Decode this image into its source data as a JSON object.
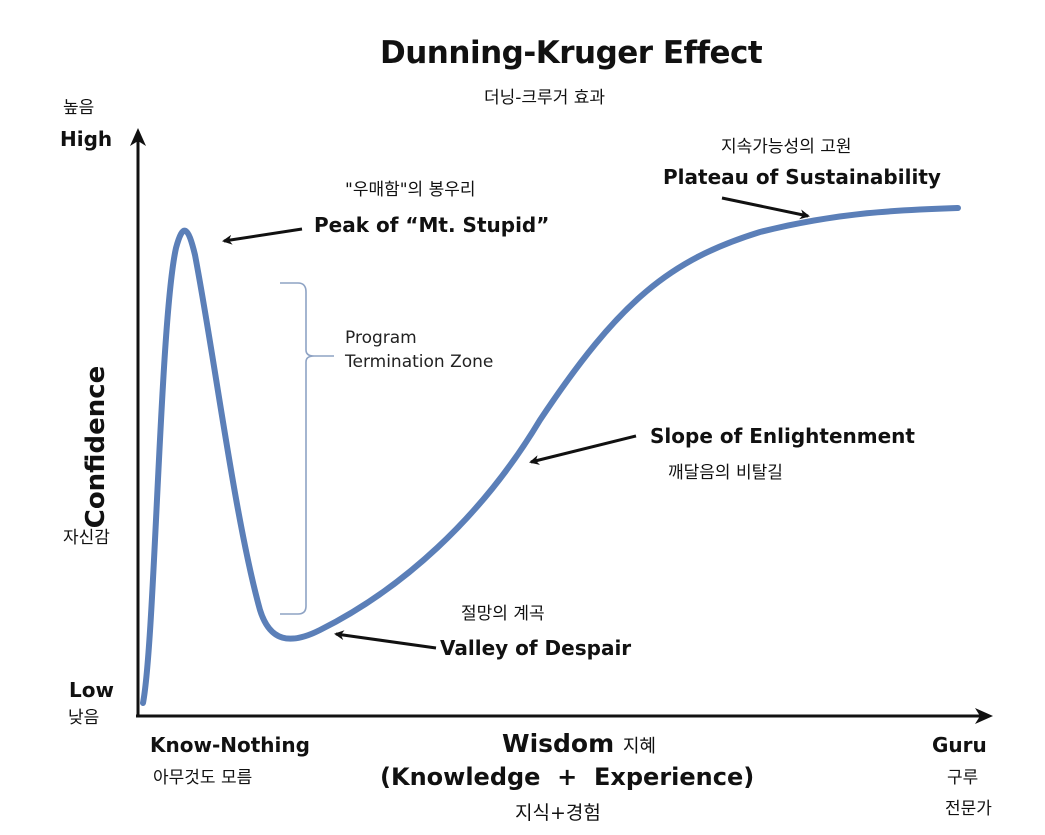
{
  "title": "Dunning-Kruger Effect",
  "title_ko": "더닝-크루거 효과",
  "y_axis": {
    "high_ko": "높음",
    "high": "High",
    "label": "Confidence",
    "label_ko": "자신감",
    "low": "Low",
    "low_ko": "낮음"
  },
  "x_axis": {
    "left": "Know-Nothing",
    "left_ko": "아무것도 모름",
    "label": "Wisdom",
    "label_ko": "지혜",
    "sublabel": "(Knowledge  +  Experience)",
    "sublabel_ko": "지식+경험",
    "right": "Guru",
    "right_ko_1": "구루",
    "right_ko_2": "전문가"
  },
  "annotations": {
    "peak_ko": "\"우매함\"의 봉우리",
    "peak": "Peak of “Mt. Stupid”",
    "zone_line1": "Program",
    "zone_line2": "Termination Zone",
    "valley_ko": "절망의 계곡",
    "valley": "Valley of Despair",
    "slope": "Slope of Enlightenment",
    "slope_ko": "깨달음의 비탈길",
    "plateau_ko": "지속가능성의 고원",
    "plateau": "Plateau of Sustainability"
  },
  "colors": {
    "curve": "#5b7fb8",
    "axis": "#111111",
    "bracket": "#8ea3c4",
    "text": "#111111"
  }
}
